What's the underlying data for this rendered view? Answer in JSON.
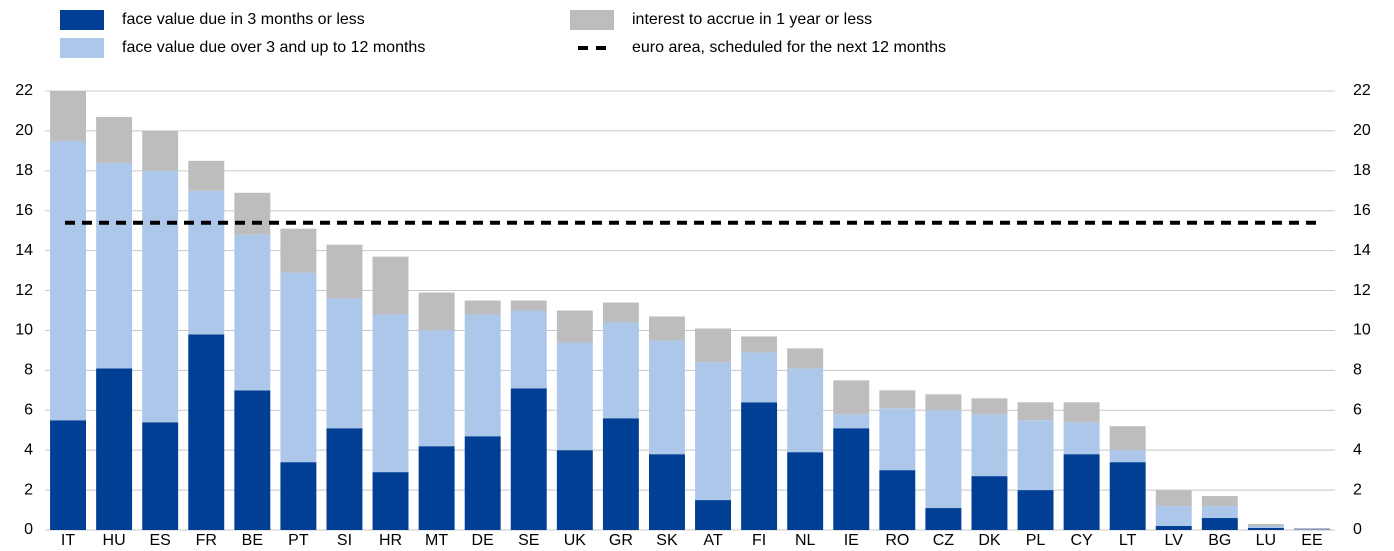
{
  "chart_data": {
    "type": "stacked_bar",
    "categories": [
      "IT",
      "HU",
      "ES",
      "FR",
      "BE",
      "PT",
      "SI",
      "HR",
      "MT",
      "DE",
      "SE",
      "UK",
      "GR",
      "SK",
      "AT",
      "FI",
      "NL",
      "IE",
      "RO",
      "CZ",
      "DK",
      "PL",
      "CY",
      "LT",
      "LV",
      "BG",
      "LU",
      "EE"
    ],
    "series": [
      {
        "name": "face value due in 3 months or less",
        "color": "#003f94",
        "values": [
          5.5,
          8.1,
          5.4,
          9.8,
          7.0,
          3.4,
          5.1,
          2.9,
          4.2,
          4.7,
          7.1,
          4.0,
          5.6,
          3.8,
          1.5,
          6.4,
          3.9,
          5.1,
          3.0,
          1.1,
          2.7,
          2.0,
          3.8,
          3.4,
          0.2,
          0.6,
          0.1,
          0.02
        ]
      },
      {
        "name": "face value due over 3 and up to 12 months",
        "color": "#adc7ea",
        "values": [
          14.0,
          10.3,
          12.6,
          7.2,
          7.8,
          9.5,
          6.5,
          7.9,
          5.8,
          6.1,
          3.9,
          5.4,
          4.8,
          5.7,
          6.9,
          2.5,
          4.2,
          0.7,
          3.1,
          4.9,
          3.1,
          3.5,
          1.6,
          0.6,
          1.0,
          0.6,
          0.1,
          0.03
        ]
      },
      {
        "name": "interest to accrue in 1 year or less",
        "color": "#bdbdbd",
        "values": [
          2.5,
          2.3,
          2.0,
          1.5,
          2.1,
          2.2,
          2.7,
          2.9,
          1.9,
          0.7,
          0.5,
          1.6,
          1.0,
          1.2,
          1.7,
          0.8,
          1.0,
          1.7,
          0.9,
          0.8,
          0.8,
          0.9,
          1.0,
          1.2,
          0.8,
          0.5,
          0.1,
          0.05
        ]
      }
    ],
    "reference_line": {
      "name": "euro area, scheduled for the next 12 months",
      "value": 15.4,
      "color": "#000000"
    },
    "ylim": [
      0,
      22
    ],
    "yticks": [
      0,
      2,
      4,
      6,
      8,
      10,
      12,
      14,
      16,
      18,
      20,
      22
    ],
    "y2lim": [
      0,
      22
    ],
    "y2ticks": [
      0,
      2,
      4,
      6,
      8,
      10,
      12,
      14,
      16,
      18,
      20,
      22
    ],
    "grid": true
  }
}
